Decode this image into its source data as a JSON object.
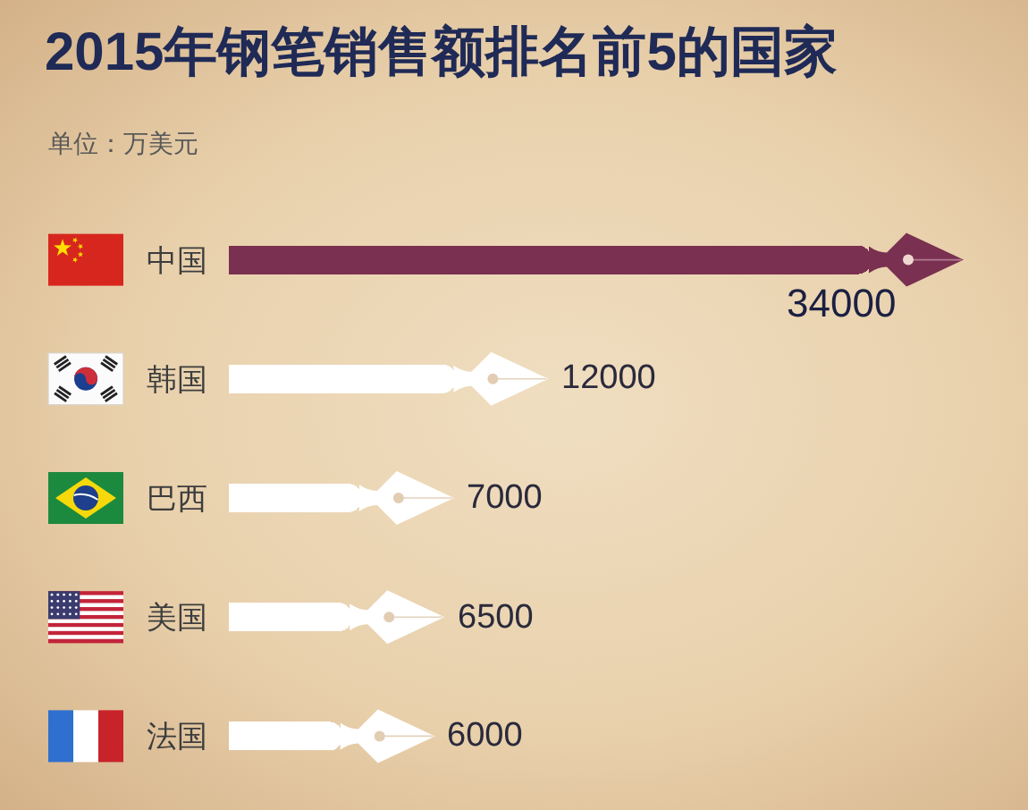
{
  "chart_data": {
    "type": "bar",
    "orientation": "horizontal",
    "title": "2015年钢笔销售额排名前5的国家",
    "subtitle": "单位：万美元",
    "categories": [
      "中国",
      "韩国",
      "巴西",
      "美国",
      "法国"
    ],
    "values": [
      34000,
      12000,
      7000,
      6500,
      6000
    ],
    "colors": [
      "#7a3050",
      "#ffffff",
      "#ffffff",
      "#ffffff",
      "#ffffff"
    ],
    "xlim": [
      0,
      34000
    ],
    "data_labels": true,
    "tick_labels": "y"
  }
}
